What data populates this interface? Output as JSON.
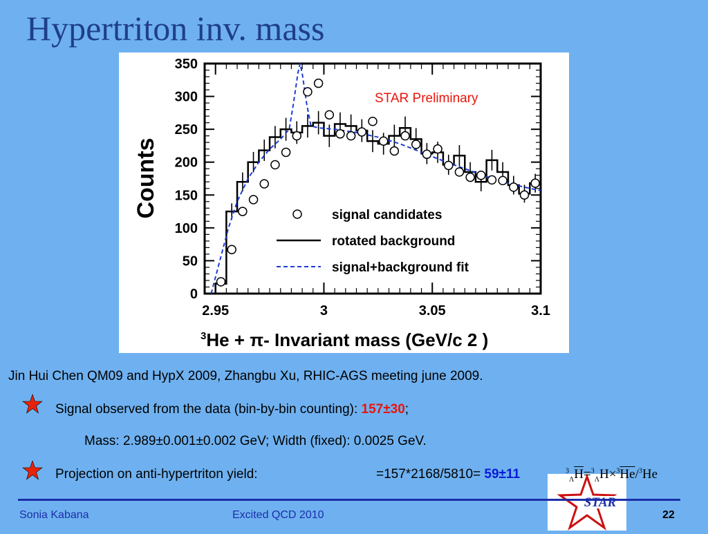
{
  "slide": {
    "title": "Hypertriton inv. mass",
    "reference": "Jin Hui Chen QM09 and HypX 2009,  Zhangbu Xu, RHIC-AGS meeting june 2009.",
    "bullet1_text": "Signal observed from the data (bin-by-bin counting):",
    "bullet1_value": "157±30",
    "bullet1_tail": ";",
    "mass_line": "Mass: 2.989±0.001±0.002 GeV; Width (fixed): 0.0025 GeV.",
    "bullet2_text": "Projection on anti-hypertriton yield:",
    "bullet2_calc": "=157*2168/5810=",
    "bullet2_value": "59±11",
    "footer_left": "Sonia Kabana",
    "footer_center": "Excited QCD 2010",
    "page_number": "22",
    "logo_text": "STAR",
    "icons": [
      "star-bullet-icon",
      "star-logo-icon"
    ],
    "colors": {
      "background": "#6fb1f0",
      "title": "#1f3f8a",
      "highlight_red": "#e8140a",
      "highlight_blue": "#0a1ad8",
      "footer": "#1a2ea8"
    }
  },
  "chart_data": {
    "type": "scatter",
    "annotation": "STAR Preliminary",
    "xlabel_prefix": "3",
    "xlabel": "He + π- Invariant mass (GeV/c 2 )",
    "ylabel": "Counts",
    "xlim": [
      2.945,
      3.1
    ],
    "ylim": [
      0,
      350
    ],
    "xticks": [
      2.95,
      3.0,
      3.05,
      3.1
    ],
    "xtick_labels": [
      "2.95",
      "3",
      "3.05",
      "3.1"
    ],
    "yticks": [
      0,
      50,
      100,
      150,
      200,
      250,
      300,
      350
    ],
    "legend": [
      "signal candidates",
      "rotated background",
      "signal+background fit"
    ],
    "legend_position": "bottom-right",
    "series": [
      {
        "name": "signal candidates",
        "style": "points",
        "x": [
          2.9525,
          2.9575,
          2.9625,
          2.9675,
          2.9725,
          2.9775,
          2.9825,
          2.9875,
          2.9925,
          2.9975,
          3.0025,
          3.0075,
          3.0125,
          3.0175,
          3.0225,
          3.0275,
          3.0325,
          3.0375,
          3.0425,
          3.0475,
          3.0525,
          3.0575,
          3.0625,
          3.0675,
          3.0725,
          3.0775,
          3.0825,
          3.0875,
          3.0925,
          3.0975
        ],
        "y": [
          18,
          67,
          125,
          143,
          167,
          196,
          215,
          240,
          307,
          320,
          272,
          243,
          240,
          246,
          262,
          232,
          217,
          240,
          227,
          212,
          220,
          195,
          185,
          177,
          180,
          173,
          172,
          162,
          150,
          168
        ]
      },
      {
        "name": "rotated background",
        "style": "step",
        "x": [
          2.9525,
          2.9575,
          2.9625,
          2.9675,
          2.9725,
          2.9775,
          2.9825,
          2.9875,
          2.9925,
          2.9975,
          3.0025,
          3.0075,
          3.0125,
          3.0175,
          3.0225,
          3.0275,
          3.0325,
          3.0375,
          3.0425,
          3.0475,
          3.0525,
          3.0575,
          3.0625,
          3.0675,
          3.0725,
          3.0775,
          3.0825,
          3.0875,
          3.0925,
          3.0975
        ],
        "y": [
          15,
          125,
          170,
          200,
          218,
          238,
          250,
          245,
          255,
          260,
          240,
          258,
          255,
          248,
          232,
          228,
          240,
          252,
          235,
          213,
          215,
          196,
          210,
          185,
          170,
          203,
          185,
          165,
          152,
          168
        ]
      },
      {
        "name": "signal+background fit",
        "style": "dashed",
        "x": [
          2.948,
          2.952,
          2.956,
          2.96,
          2.965,
          2.97,
          2.975,
          2.98,
          2.984,
          2.986,
          2.988,
          2.989,
          2.99,
          2.992,
          2.994,
          2.998,
          3.005,
          3.015,
          3.025,
          3.035,
          3.045,
          3.055,
          3.065,
          3.075,
          3.085,
          3.095,
          3.1
        ],
        "y": [
          0,
          50,
          100,
          140,
          175,
          200,
          220,
          235,
          250,
          290,
          335,
          350,
          335,
          290,
          255,
          252,
          250,
          245,
          238,
          228,
          215,
          202,
          190,
          178,
          168,
          160,
          157
        ]
      }
    ]
  }
}
